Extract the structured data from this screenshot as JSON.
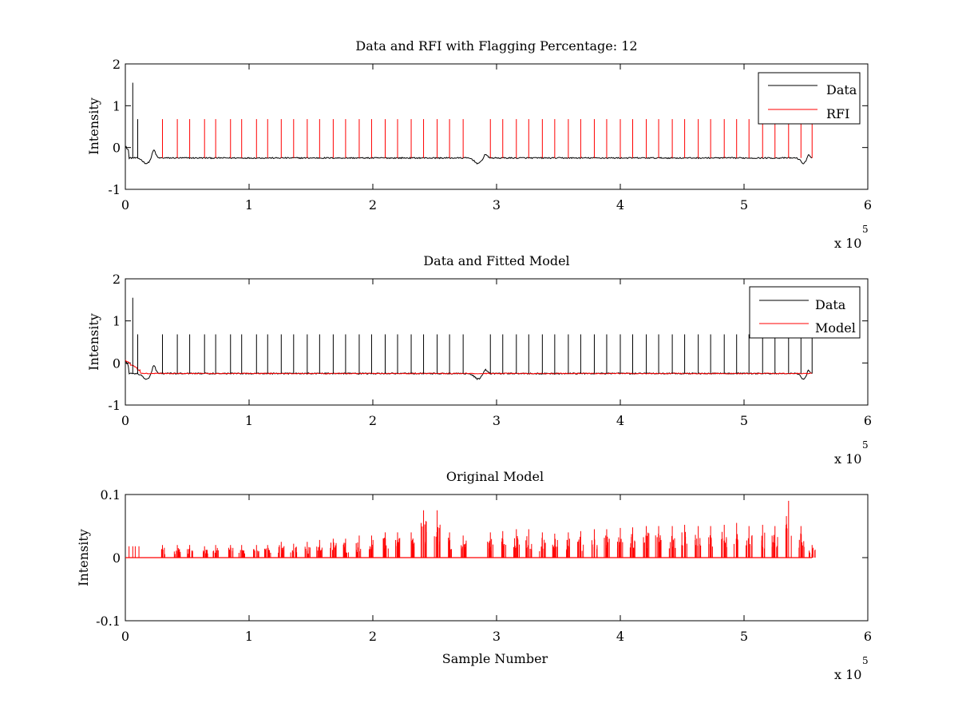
{
  "chart_data": [
    {
      "type": "line",
      "title": "Data and RFI with Flagging Percentage: 12",
      "xlabel": "",
      "ylabel": "Intensity",
      "xlim": [
        0,
        600000
      ],
      "ylim": [
        -1,
        2
      ],
      "xticks": [
        0,
        100000,
        200000,
        300000,
        400000,
        500000,
        600000
      ],
      "xtick_labels": [
        "0",
        "1",
        "2",
        "3",
        "4",
        "5",
        "6"
      ],
      "yticks": [
        -1,
        0,
        1,
        2
      ],
      "ytick_labels": [
        "-1",
        "0",
        "1",
        "2"
      ],
      "x_exponent": {
        "base": "x 10",
        "power": "5"
      },
      "grid": false,
      "legend_position": "top-right",
      "series": [
        {
          "name": "Data",
          "color": "#000000",
          "kind": "data_trace"
        },
        {
          "name": "RFI",
          "color": "#ff0000",
          "kind": "rfi_spikes"
        }
      ]
    },
    {
      "type": "line",
      "title": "Data and Fitted Model",
      "xlabel": "",
      "ylabel": "Intensity",
      "xlim": [
        0,
        600000
      ],
      "ylim": [
        -1,
        2
      ],
      "xticks": [
        0,
        100000,
        200000,
        300000,
        400000,
        500000,
        600000
      ],
      "xtick_labels": [
        "0",
        "1",
        "2",
        "3",
        "4",
        "5",
        "6"
      ],
      "yticks": [
        -1,
        0,
        1,
        2
      ],
      "ytick_labels": [
        "-1",
        "0",
        "1",
        "2"
      ],
      "x_exponent": {
        "base": "x 10",
        "power": "5"
      },
      "grid": false,
      "legend_position": "top-right",
      "series": [
        {
          "name": "Data",
          "color": "#000000",
          "kind": "data_with_spikes"
        },
        {
          "name": "Model",
          "color": "#ff0000",
          "kind": "model_baseline"
        }
      ]
    },
    {
      "type": "line",
      "title": "Original Model",
      "xlabel": "Sample Number",
      "ylabel": "Intensity",
      "xlim": [
        0,
        600000
      ],
      "ylim": [
        -0.1,
        0.1
      ],
      "xticks": [
        0,
        100000,
        200000,
        300000,
        400000,
        500000,
        600000
      ],
      "xtick_labels": [
        "0",
        "1",
        "2",
        "3",
        "4",
        "5",
        "6"
      ],
      "yticks": [
        -0.1,
        0,
        0.1
      ],
      "ytick_labels": [
        "-0.1",
        "0",
        "0.1"
      ],
      "x_exponent": {
        "base": "x 10",
        "power": "5"
      },
      "grid": false,
      "legend_position": "none",
      "series": [
        {
          "color": "#ff0000",
          "kind": "original_model"
        }
      ]
    }
  ],
  "signal": {
    "x_max": 555000,
    "baseline": -0.25,
    "spike_x": [
      30000,
      42000,
      52000,
      64000,
      73000,
      85000,
      94000,
      106000,
      115000,
      126000,
      136000,
      147000,
      157000,
      168000,
      178000,
      189000,
      199000,
      210000,
      220000,
      231000,
      241000,
      252000,
      262000,
      273000,
      295000,
      305000,
      316000,
      326000,
      337000,
      347000,
      358000,
      368000,
      379000,
      389000,
      400000,
      410000,
      421000,
      431000,
      442000,
      452000,
      463000,
      473000,
      484000,
      494000,
      504000,
      515000,
      525000,
      536000,
      546000,
      555000
    ],
    "spike_peak": 0.68,
    "early_spikes": [
      {
        "x": 6000,
        "y": 1.55
      },
      {
        "x": 10000,
        "y": 0.68
      }
    ],
    "dips": [
      {
        "x": 17000,
        "y": -0.38,
        "w": 4000
      },
      {
        "x": 285000,
        "y": -0.38,
        "w": 4000
      },
      {
        "x": 548000,
        "y": -0.38,
        "w": 3000
      }
    ],
    "bumps": [
      {
        "x": 23000,
        "y": -0.05,
        "w": 2000
      },
      {
        "x": 291000,
        "y": -0.15,
        "w": 2000
      },
      {
        "x": 552000,
        "y": -0.15,
        "w": 1500
      }
    ],
    "model_peaks": [
      0.02,
      0.02,
      0.02,
      0.018,
      0.02,
      0.02,
      0.02,
      0.02,
      0.02,
      0.025,
      0.022,
      0.025,
      0.028,
      0.03,
      0.03,
      0.035,
      0.035,
      0.04,
      0.04,
      0.04,
      0.075,
      0.075,
      0.04,
      0.035,
      0.04,
      0.042,
      0.045,
      0.045,
      0.04,
      0.038,
      0.04,
      0.042,
      0.045,
      0.045,
      0.047,
      0.048,
      0.05,
      0.05,
      0.05,
      0.052,
      0.05,
      0.05,
      0.052,
      0.055,
      0.05,
      0.052,
      0.05,
      0.09,
      0.05,
      0.02
    ]
  }
}
